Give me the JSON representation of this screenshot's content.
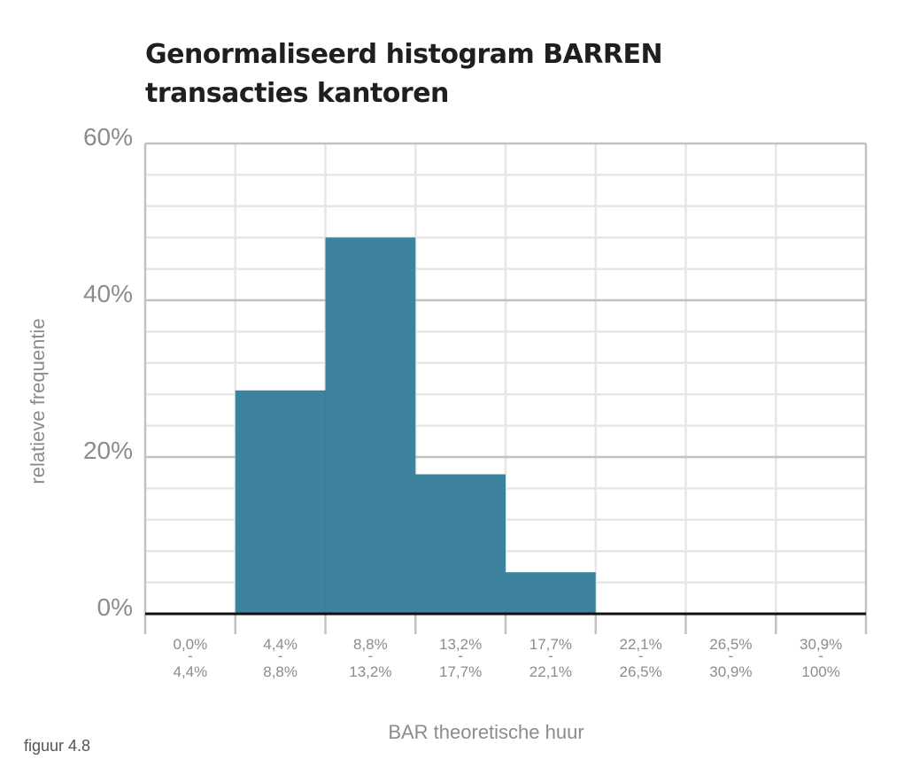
{
  "title_lines": [
    "Genormaliseerd histogram BARREN",
    "transacties kantoren"
  ],
  "caption": "figuur 4.8",
  "colors": {
    "bar": "#3d839e",
    "grid": "#e6e6e6",
    "major_grid": "#c2c2c2",
    "baseline": "#111111",
    "text": "#8c8c8c"
  },
  "chart_data": {
    "type": "bar",
    "title": "Genormaliseerd histogram BARREN transacties kantoren",
    "xlabel": "BAR theoretische huur",
    "ylabel": "relatieve frequentie",
    "ylim": [
      0,
      60
    ],
    "yticks": [
      "0%",
      "20%",
      "40%",
      "60%"
    ],
    "categories": [
      [
        "0,0%",
        "-",
        "4,4%"
      ],
      [
        "4,4%",
        "-",
        "8,8%"
      ],
      [
        "8,8%",
        "-",
        "13,2%"
      ],
      [
        "13,2%",
        "-",
        "17,7%"
      ],
      [
        "17,7%",
        "-",
        "22,1%"
      ],
      [
        "22,1%",
        "-",
        "26,5%"
      ],
      [
        "26,5%",
        "-",
        "30,9%"
      ],
      [
        "30,9%",
        "-",
        "100%"
      ]
    ],
    "values": [
      0,
      28.5,
      48,
      17.8,
      5.3,
      0,
      0,
      0
    ],
    "grid": true,
    "legend": "none"
  }
}
